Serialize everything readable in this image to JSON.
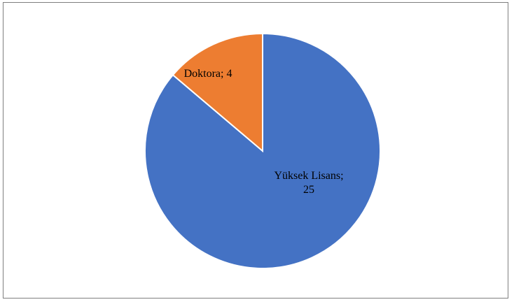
{
  "chart_data": {
    "type": "pie",
    "categories": [
      "Yüksek Lisans",
      "Doktora"
    ],
    "values": [
      25,
      4
    ],
    "colors": [
      "#4472c4",
      "#ed7d31"
    ],
    "data_labels": [
      [
        "Yüksek Lisans;",
        "25"
      ],
      [
        "Doktora; 4"
      ]
    ],
    "title": "",
    "legend": "none"
  }
}
